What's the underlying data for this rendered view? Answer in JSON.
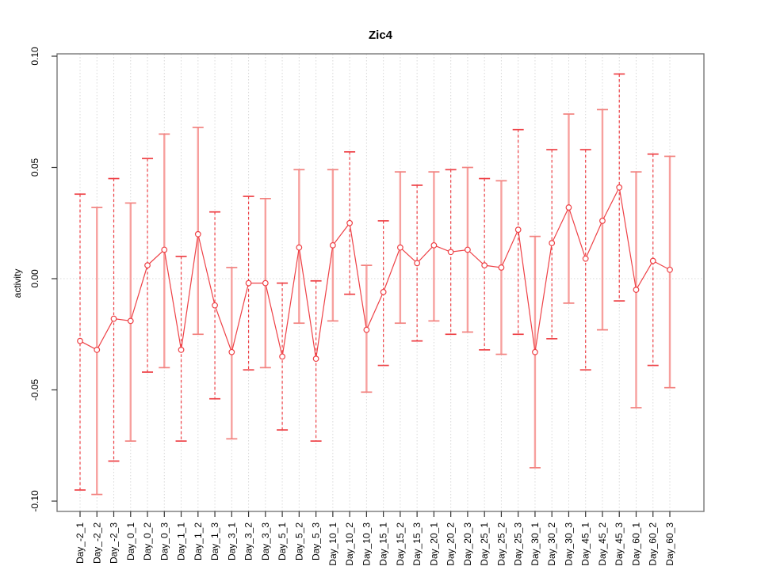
{
  "title": "Zic4",
  "chart_data": {
    "type": "line",
    "title": "Zic4",
    "xlabel": "",
    "ylabel": "activity",
    "ylim": [
      -0.1,
      0.1
    ],
    "yticks": [
      0.1,
      0.05,
      0.0,
      -0.05,
      -0.1
    ],
    "ytick_labels": [
      "0.10",
      "0.05",
      "0.00",
      "-0.05",
      "-0.10"
    ],
    "grid": "dotted vertical gridline at every category; dotted horizontal line at y=0",
    "legend_position": "none",
    "marker": "open-circle",
    "error_bars": true,
    "categories": [
      "Day_-2_1",
      "Day_-2_2",
      "Day_-2_3",
      "Day_0_1",
      "Day_0_2",
      "Day_0_3",
      "Day_1_1",
      "Day_1_2",
      "Day_1_3",
      "Day_3_1",
      "Day_3_2",
      "Day_3_3",
      "Day_5_1",
      "Day_5_2",
      "Day_5_3",
      "Day_10_1",
      "Day_10_2",
      "Day_10_3",
      "Day_15_1",
      "Day_15_2",
      "Day_15_3",
      "Day_20_1",
      "Day_20_2",
      "Day_20_3",
      "Day_25_1",
      "Day_25_2",
      "Day_25_3",
      "Day_30_1",
      "Day_30_2",
      "Day_30_3",
      "Day_45_1",
      "Day_45_2",
      "Day_45_3",
      "Day_60_1",
      "Day_60_2",
      "Day_60_3"
    ],
    "series": [
      {
        "name": "activity",
        "values": [
          -0.028,
          -0.032,
          -0.018,
          -0.019,
          0.006,
          0.013,
          -0.032,
          0.02,
          -0.012,
          -0.033,
          -0.002,
          -0.002,
          -0.035,
          0.014,
          -0.036,
          0.015,
          0.025,
          -0.023,
          -0.006,
          0.014,
          0.007,
          0.015,
          0.012,
          0.013,
          0.006,
          0.005,
          0.022,
          -0.033,
          0.016,
          0.032,
          0.009,
          0.026,
          0.041,
          -0.005,
          0.008,
          0.004
        ],
        "error_high": [
          0.038,
          0.032,
          0.045,
          0.034,
          0.054,
          0.065,
          0.01,
          0.068,
          0.03,
          0.005,
          0.037,
          0.036,
          -0.002,
          0.049,
          -0.001,
          0.049,
          0.057,
          0.006,
          0.026,
          0.048,
          0.042,
          0.048,
          0.049,
          0.05,
          0.045,
          0.044,
          0.067,
          0.019,
          0.058,
          0.074,
          0.058,
          0.076,
          0.092,
          0.048,
          0.056,
          0.055
        ],
        "error_low": [
          -0.095,
          -0.097,
          -0.082,
          -0.073,
          -0.042,
          -0.04,
          -0.073,
          -0.025,
          -0.054,
          -0.072,
          -0.041,
          -0.04,
          -0.068,
          -0.02,
          -0.073,
          -0.019,
          -0.007,
          -0.051,
          -0.039,
          -0.02,
          -0.028,
          -0.019,
          -0.025,
          -0.024,
          -0.032,
          -0.034,
          -0.025,
          -0.085,
          -0.027,
          -0.011,
          -0.041,
          -0.023,
          -0.01,
          -0.058,
          -0.039,
          -0.049
        ]
      }
    ],
    "colors": {
      "series_red": "#ee4146",
      "error_bar_solid": "#f7a09e",
      "error_cap_solid": "#f2827f",
      "error_bar_dashed": "#ee4146",
      "gridline": "#d8d8d8",
      "frame": "#777777",
      "tick": "#333333",
      "text": "#000000",
      "background": "#ffffff"
    }
  }
}
